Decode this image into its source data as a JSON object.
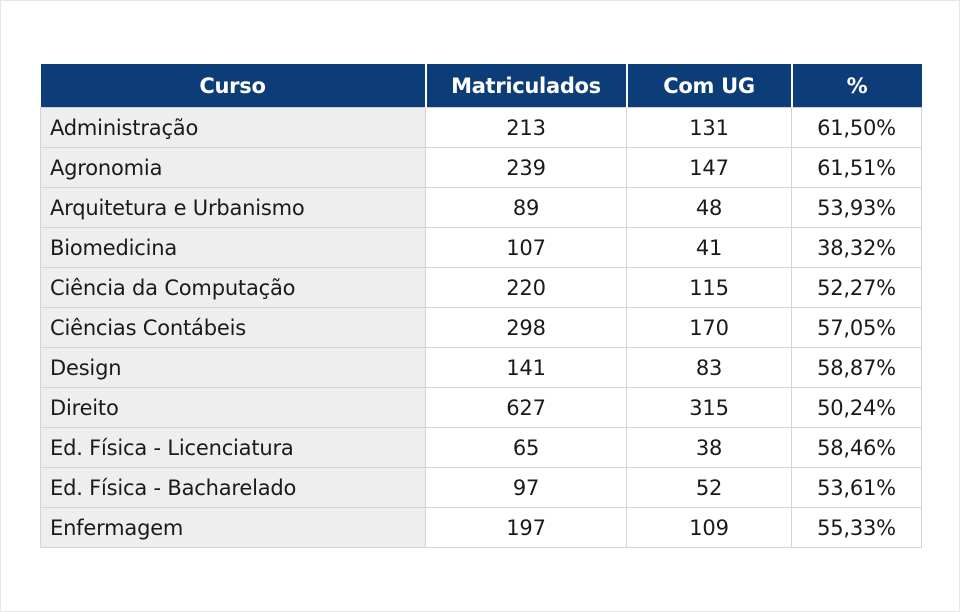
{
  "table": {
    "headers": {
      "curso": "Curso",
      "matriculados": "Matriculados",
      "com_ug": "Com UG",
      "percent": "%"
    },
    "rows": [
      {
        "curso": "Administração",
        "matriculados": "213",
        "com_ug": "131",
        "percent": "61,50%"
      },
      {
        "curso": "Agronomia",
        "matriculados": "239",
        "com_ug": "147",
        "percent": "61,51%"
      },
      {
        "curso": "Arquitetura e Urbanismo",
        "matriculados": "89",
        "com_ug": "48",
        "percent": "53,93%"
      },
      {
        "curso": "Biomedicina",
        "matriculados": "107",
        "com_ug": "41",
        "percent": "38,32%"
      },
      {
        "curso": "Ciência da Computação",
        "matriculados": "220",
        "com_ug": "115",
        "percent": "52,27%"
      },
      {
        "curso": "Ciências Contábeis",
        "matriculados": "298",
        "com_ug": "170",
        "percent": "57,05%"
      },
      {
        "curso": "Design",
        "matriculados": "141",
        "com_ug": "83",
        "percent": "58,87%"
      },
      {
        "curso": "Direito",
        "matriculados": "627",
        "com_ug": "315",
        "percent": "50,24%"
      },
      {
        "curso": "Ed. Física - Licenciatura",
        "matriculados": "65",
        "com_ug": "38",
        "percent": "58,46%"
      },
      {
        "curso": "Ed. Física - Bacharelado",
        "matriculados": "97",
        "com_ug": "52",
        "percent": "53,61%"
      },
      {
        "curso": "Enfermagem",
        "matriculados": "197",
        "com_ug": "109",
        "percent": "55,33%"
      }
    ]
  },
  "colors": {
    "header_bg": "#0d3d78",
    "header_text": "#ffffff",
    "first_column_bg": "#eeeeee",
    "grid": "#d4d4d4"
  }
}
